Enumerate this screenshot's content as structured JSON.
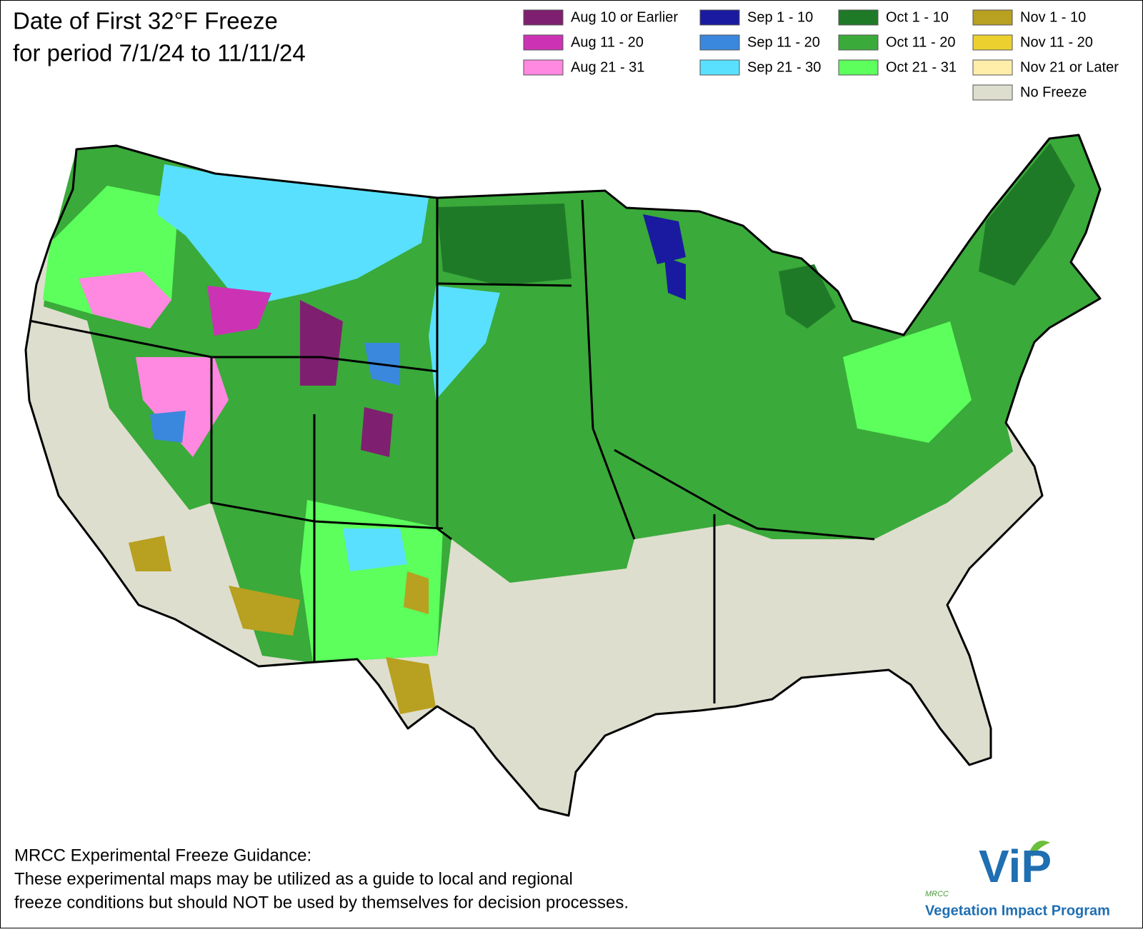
{
  "title": "Date of First 32°F Freeze",
  "subtitle": "for period 7/1/24 to 11/11/24",
  "legend": {
    "items": [
      {
        "label": "Aug 10 or Earlier",
        "color": "#7f1f70"
      },
      {
        "label": "Aug 11 - 20",
        "color": "#cc33b4"
      },
      {
        "label": "Aug 21 - 31",
        "color": "#ff88e0"
      },
      {
        "label": "Sep 1 - 10",
        "color": "#1a1aa0"
      },
      {
        "label": "Sep 11 - 20",
        "color": "#3a88dd"
      },
      {
        "label": "Sep 21 - 30",
        "color": "#5ae0ff"
      },
      {
        "label": "Oct 1 - 10",
        "color": "#1f7a28"
      },
      {
        "label": "Oct 11 - 20",
        "color": "#3aaa3a"
      },
      {
        "label": "Oct 21 - 31",
        "color": "#5cff5c"
      },
      {
        "label": "Nov 1 - 10",
        "color": "#b8a020"
      },
      {
        "label": "Nov 11 - 20",
        "color": "#ecd030"
      },
      {
        "label": "Nov 21 or Later",
        "color": "#ffeeaa"
      },
      {
        "label": "No Freeze",
        "color": "#dedece"
      }
    ]
  },
  "footer": {
    "heading": "MRCC Experimental Freeze Guidance:",
    "lines": [
      "These experimental maps may be utilized as a guide to local and regional",
      "freeze conditions but should NOT be used by themselves for decision processes."
    ]
  },
  "logo": {
    "small": "MRCC",
    "mark": "ViP",
    "name": "Vegetation Impact Program"
  }
}
